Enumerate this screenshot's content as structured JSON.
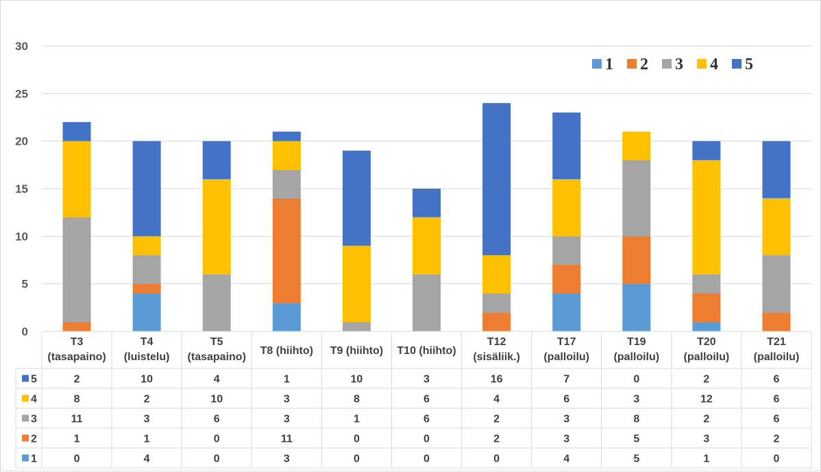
{
  "chart_data": {
    "type": "bar",
    "stacked": true,
    "title": "",
    "xlabel": "",
    "ylabel": "",
    "ylim": [
      0,
      30
    ],
    "yticks": [
      0,
      5,
      10,
      15,
      20,
      25,
      30
    ],
    "grid": true,
    "legend_position": "top-right",
    "categories": [
      [
        "T3",
        "(tasapaino)"
      ],
      [
        "T4",
        "(luistelu)"
      ],
      [
        "T5",
        "(tasapaino)"
      ],
      [
        "T8 (hiihto)"
      ],
      [
        "T9 (hiihto)"
      ],
      [
        "T10 (hiihto)"
      ],
      [
        "T12",
        "(sisäliik.)"
      ],
      [
        "T17",
        "(palloilu)"
      ],
      [
        "T19",
        "(palloilu)"
      ],
      [
        "T20",
        "(palloilu)"
      ],
      [
        "T21",
        "(palloilu)"
      ]
    ],
    "series": [
      {
        "name": "1",
        "color": "#5B9BD5",
        "values": [
          0,
          4,
          0,
          3,
          0,
          0,
          0,
          4,
          5,
          1,
          0
        ]
      },
      {
        "name": "2",
        "color": "#ED7D31",
        "values": [
          1,
          1,
          0,
          11,
          0,
          0,
          2,
          3,
          5,
          3,
          2
        ]
      },
      {
        "name": "3",
        "color": "#A5A5A5",
        "values": [
          11,
          3,
          6,
          3,
          1,
          6,
          2,
          3,
          8,
          2,
          6
        ]
      },
      {
        "name": "4",
        "color": "#FFC000",
        "values": [
          8,
          2,
          10,
          3,
          8,
          6,
          4,
          6,
          3,
          12,
          6
        ]
      },
      {
        "name": "5",
        "color": "#4472C4",
        "values": [
          2,
          10,
          4,
          1,
          10,
          3,
          16,
          7,
          0,
          2,
          6
        ]
      }
    ],
    "data_table": true,
    "data_table_row_order": [
      "5",
      "4",
      "3",
      "2",
      "1"
    ]
  }
}
